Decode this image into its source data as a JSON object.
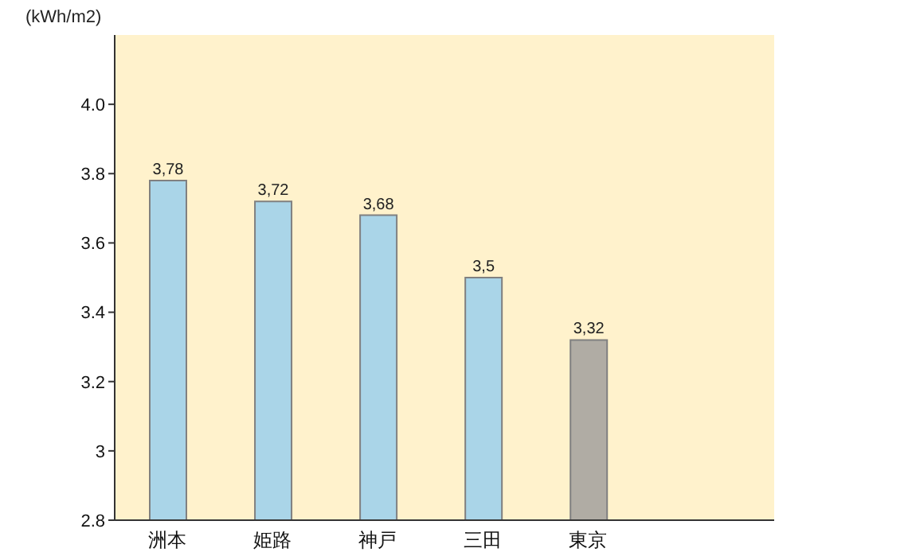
{
  "chart_data": {
    "type": "bar",
    "ylabel": "(kWh/m2)",
    "categories": [
      "洲本",
      "姫路",
      "神戸",
      "三田",
      "東京"
    ],
    "values": [
      3.78,
      3.72,
      3.68,
      3.5,
      3.32
    ],
    "colors": [
      "#aad5e8",
      "#aad5e8",
      "#aad5e8",
      "#aad5e8",
      "#b0aca4"
    ],
    "value_labels": [
      "3,78",
      "3,72",
      "3,68",
      "3,5",
      "3,32"
    ],
    "ylim": [
      2.8,
      4.2
    ],
    "yticks": [
      2.8,
      3,
      {
        "value": 3.2,
        "label": "3.2"
      },
      {
        "value": 3.4,
        "label": "3.4"
      },
      {
        "value": 3.6,
        "label": "3.6"
      },
      {
        "value": 3.8,
        "label": "3.8"
      },
      {
        "value": 4,
        "label": "4.0"
      }
    ],
    "grid": false
  }
}
